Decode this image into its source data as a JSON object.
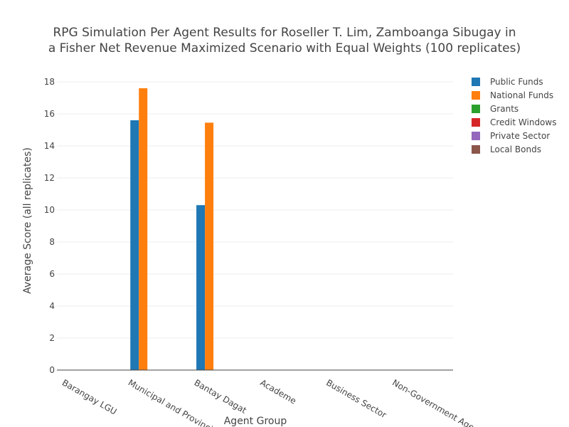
{
  "chart_data": {
    "type": "bar",
    "title_lines": [
      "RPG Simulation Per Agent Results for Roseller T. Lim, Zamboanga Sibugay in",
      "a Fisher Net Revenue Maximized Scenario with Equal Weights (100 replicates)"
    ],
    "xlabel": "Agent Group",
    "ylabel": "Average Score (all replicates)",
    "categories": [
      "Barangay LGU",
      "Municipal and Provincial LGU",
      "Bantay Dagat",
      "Academe",
      "Business Sector",
      "Non-Government Agencies"
    ],
    "series": [
      {
        "name": "Public Funds",
        "color": "#1f77b4",
        "values": [
          0,
          15.6,
          10.3,
          0,
          0,
          0
        ]
      },
      {
        "name": "National Funds",
        "color": "#ff7f0e",
        "values": [
          0,
          17.6,
          15.45,
          0,
          0,
          0
        ]
      },
      {
        "name": "Grants",
        "color": "#2ca02c",
        "values": [
          0,
          0,
          0,
          0,
          0,
          0
        ]
      },
      {
        "name": "Credit Windows",
        "color": "#d62728",
        "values": [
          0,
          0,
          0,
          0,
          0,
          0
        ]
      },
      {
        "name": "Private Sector",
        "color": "#9467bd",
        "values": [
          0,
          0,
          0,
          0,
          0,
          0
        ]
      },
      {
        "name": "Local Bonds",
        "color": "#8c564b",
        "values": [
          0,
          0,
          0,
          0,
          0,
          0
        ]
      }
    ],
    "ylim": [
      0,
      18.8
    ],
    "yticks": [
      0,
      2,
      4,
      6,
      8,
      10,
      12,
      14,
      16,
      18
    ],
    "grid": true,
    "legend_position": "top-right"
  }
}
